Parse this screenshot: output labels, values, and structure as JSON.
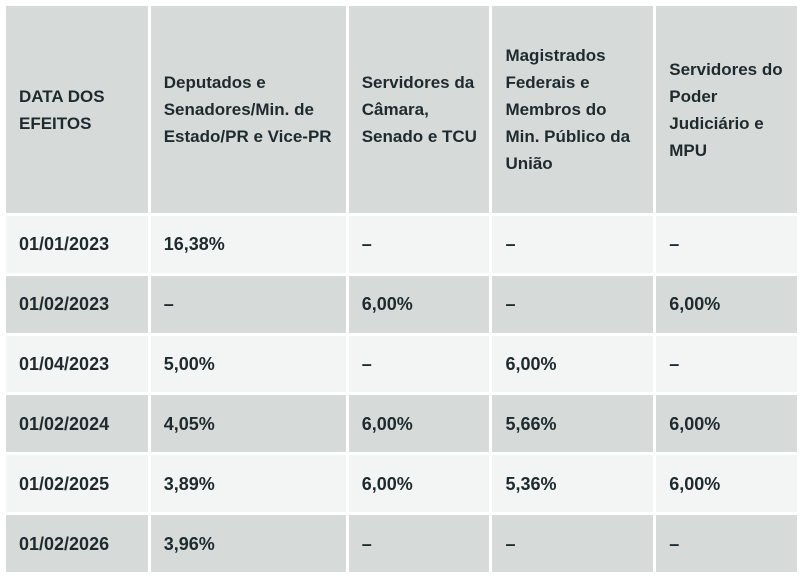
{
  "table": {
    "headers": [
      "DATA DOS EFEITOS",
      "Deputados e Senadores/Min. de Estado/PR e Vice-PR",
      "Servidores da Câmara, Senado e TCU",
      "Magistrados Federais e Membros do Min. Público da União",
      "Servidores do Poder Judiciário e MPU"
    ],
    "rows": [
      [
        "01/01/2023",
        "16,38%",
        "–",
        "–",
        "–"
      ],
      [
        "01/02/2023",
        "–",
        "6,00%",
        "–",
        "6,00%"
      ],
      [
        "01/04/2023",
        "5,00%",
        "–",
        "6,00%",
        "–"
      ],
      [
        "01/02/2024",
        "4,05%",
        "6,00%",
        "5,66%",
        "6,00%"
      ],
      [
        "01/02/2025",
        "3,89%",
        "6,00%",
        "5,36%",
        "6,00%"
      ],
      [
        "01/02/2026",
        "3,96%",
        "–",
        "–",
        "–"
      ]
    ]
  },
  "colors": {
    "header_bg": "#d6dbd9",
    "row_light": "#f3f5f4",
    "row_dark": "#d6dbd9",
    "text": "#1f2a2e"
  }
}
